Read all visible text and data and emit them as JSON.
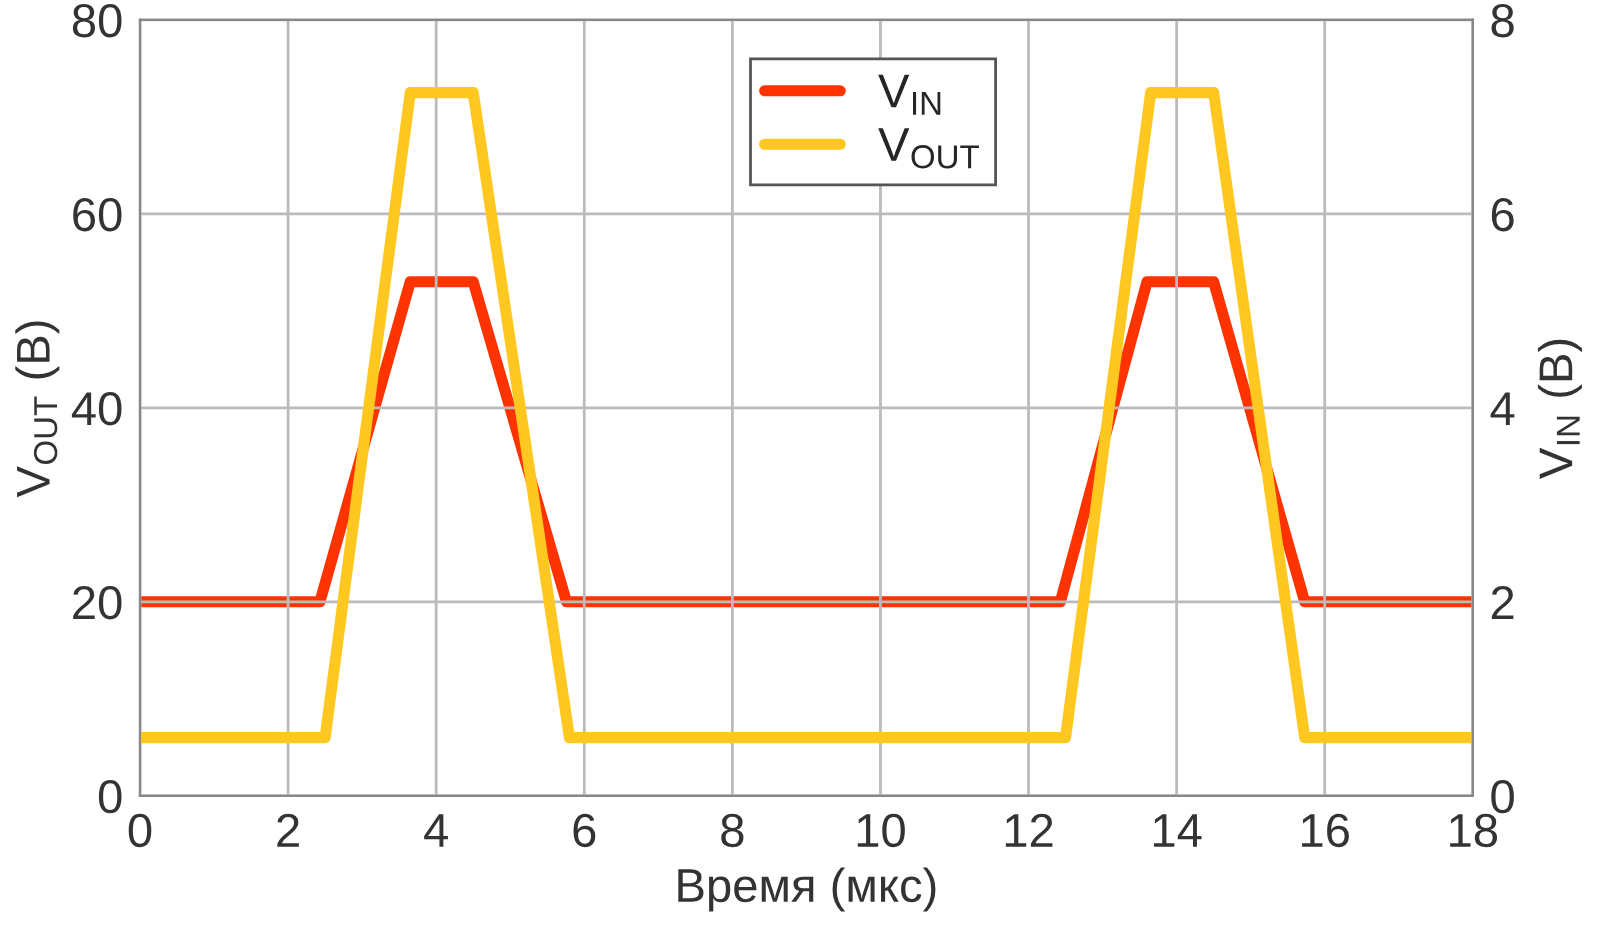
{
  "chart_data": {
    "type": "line",
    "xlabel": "Время (мкс)",
    "ylabel": "V$_{OUT}$ (В)",
    "y2label": "V$_{IN}$ (В)",
    "series": [
      {
        "name": "V$_{IN}$",
        "color": "#ff3300",
        "axis": "y2",
        "x": [
          0,
          2.43,
          3.65,
          4.5,
          5.76,
          12.43,
          13.6,
          14.5,
          15.73,
          18
        ],
        "values": [
          2.0,
          2.0,
          5.3,
          5.3,
          2.0,
          2.0,
          5.3,
          5.3,
          2.0,
          2.0
        ]
      },
      {
        "name": "V$_{OUT}$",
        "color": "#ffc820",
        "x": [
          0,
          2.5,
          3.65,
          4.5,
          5.8,
          12.5,
          13.65,
          14.5,
          15.73,
          18
        ],
        "values": [
          6,
          6,
          72.5,
          72.5,
          6,
          6,
          72.5,
          72.5,
          6,
          6
        ]
      }
    ],
    "xlim": [
      0,
      18
    ],
    "xticks": [
      0,
      2,
      4,
      6,
      8,
      10,
      12,
      14,
      16,
      18
    ],
    "ylim": [
      0,
      80
    ],
    "yticks": [
      0,
      20,
      40,
      60,
      80
    ],
    "y2lim": [
      0,
      8
    ],
    "y2ticks": [
      0,
      2,
      4,
      6,
      8
    ],
    "grid": true,
    "legend": "top",
    "line_style": "solid"
  }
}
